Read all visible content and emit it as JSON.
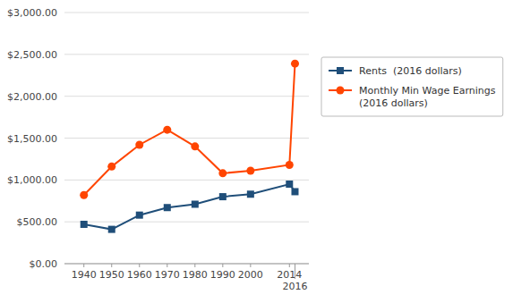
{
  "chart_data": {
    "type": "line",
    "x": [
      1940,
      1950,
      1960,
      1970,
      1980,
      1990,
      2000,
      2014,
      2016
    ],
    "series": [
      {
        "name": "Rents  (2016 dollars)",
        "color": "#1F4E79",
        "marker": "square",
        "values": [
          470,
          410,
          580,
          670,
          710,
          800,
          830,
          950,
          860
        ]
      },
      {
        "name": "Monthly Min Wage Earnings\n(2016 dollars)",
        "color": "#FF4500",
        "marker": "circle",
        "values": [
          820,
          1160,
          1420,
          1600,
          1400,
          1080,
          1110,
          1180,
          2390
        ]
      }
    ],
    "xlim": [
      1933,
      2021
    ],
    "xticks": [
      1940,
      1950,
      1960,
      1970,
      1980,
      1990,
      2000,
      2014,
      2016
    ],
    "ylim": [
      0,
      3000
    ],
    "yticks": [
      {
        "value": 0,
        "label": "$0.00"
      },
      {
        "value": 500,
        "label": "$500.00"
      },
      {
        "value": 1000,
        "label": "$1,000.00"
      },
      {
        "value": 1500,
        "label": "$1,500.00"
      },
      {
        "value": 2000,
        "label": "$2,000.00"
      },
      {
        "value": 2500,
        "label": "$2,500.00"
      },
      {
        "value": 3000,
        "label": "$3,000.00"
      }
    ],
    "grid": true,
    "legend": "right"
  }
}
